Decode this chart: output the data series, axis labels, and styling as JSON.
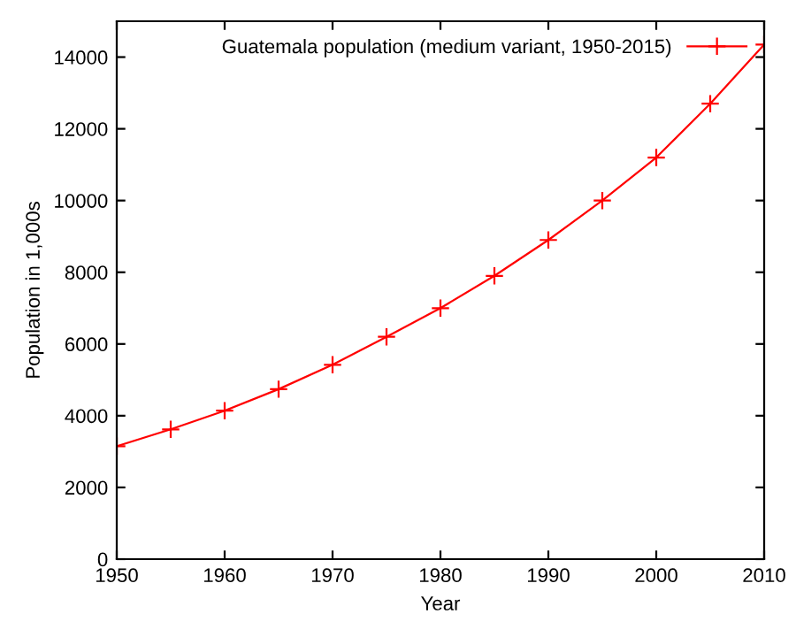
{
  "chart_data": {
    "type": "line",
    "xlabel": "Year",
    "ylabel": "Population in 1,000s",
    "x": [
      1950,
      1955,
      1960,
      1965,
      1970,
      1975,
      1980,
      1985,
      1990,
      1995,
      2000,
      2005,
      2010
    ],
    "series": [
      {
        "name": "Guatemala population (medium variant, 1950-2015)",
        "color": "#ff0000",
        "values": [
          3150,
          3620,
          4140,
          4740,
          5420,
          6200,
          7000,
          7900,
          8900,
          10000,
          11200,
          12700,
          14350
        ]
      }
    ],
    "xlim": [
      1950,
      2010
    ],
    "xticks": [
      1950,
      1960,
      1970,
      1980,
      1990,
      2000,
      2010
    ],
    "ylim": [
      0,
      15000
    ],
    "yticks": [
      0,
      2000,
      4000,
      6000,
      8000,
      10000,
      12000,
      14000
    ],
    "marker": "cross",
    "line_style": "solid",
    "legend": "top right",
    "grid": false
  }
}
